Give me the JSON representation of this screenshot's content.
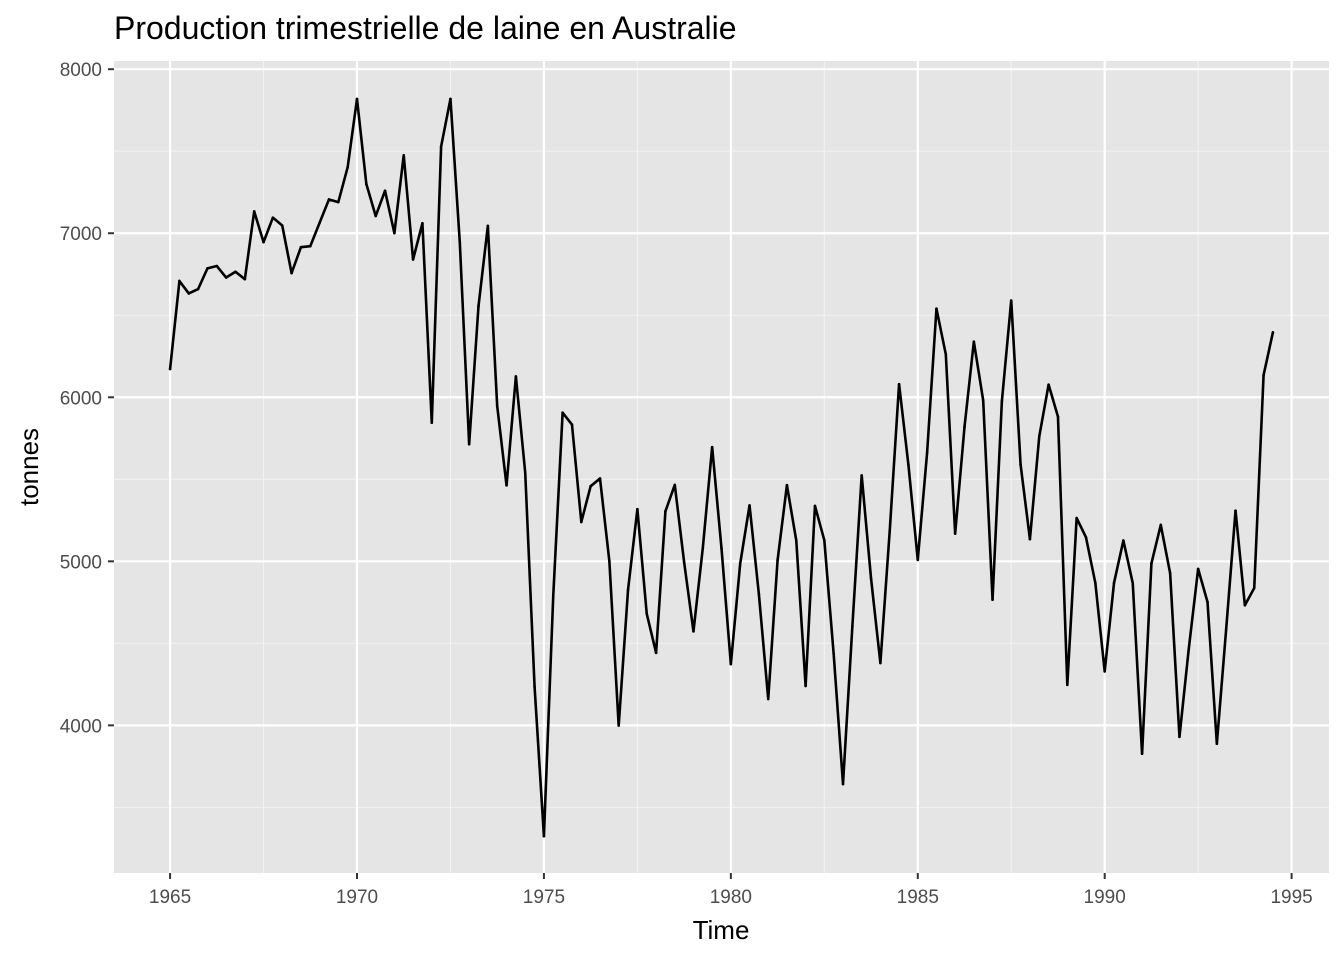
{
  "chart_data": {
    "type": "line",
    "title": "Production trimestrielle de laine en Australie",
    "xlabel": "Time",
    "ylabel": "tonnes",
    "xlim": [
      1963.5,
      1996.0
    ],
    "ylim": [
      3100,
      8050
    ],
    "x_ticks": [
      1965,
      1970,
      1975,
      1980,
      1985,
      1990,
      1995
    ],
    "y_ticks": [
      4000,
      5000,
      6000,
      7000,
      8000
    ],
    "grid": true,
    "legend": "none",
    "colors": {
      "panel_background": "#e5e5e5",
      "grid_major": "#ffffff",
      "grid_minor": "#f2f2f2",
      "line": "#000000",
      "tick_text": "#4d4d4d"
    },
    "series": [
      {
        "x_start": 1965.0,
        "frequency": 4,
        "values": [
          6172,
          6709,
          6633,
          6660,
          6786,
          6800,
          6730,
          6765,
          6720,
          7133,
          6946,
          7095,
          7047,
          6757,
          6915,
          6921,
          7064,
          7206,
          7190,
          7402,
          7819,
          7300,
          7105,
          7259,
          7001,
          7475,
          6840,
          7061,
          5845,
          7529,
          7819,
          6943,
          5714,
          6556,
          7045,
          5947,
          5463,
          6127,
          5540,
          4235,
          3324,
          4793,
          5906,
          5834,
          5240,
          5458,
          5505,
          5002,
          3999,
          4826,
          5318,
          4681,
          4442,
          5305,
          5466,
          4995,
          4573,
          5081,
          5696,
          5079,
          4373,
          4986,
          5341,
          4800,
          4161,
          5007,
          5464,
          5127,
          4240,
          5338,
          5129,
          4437,
          3642,
          4602,
          5524,
          4895,
          4380,
          5186,
          6080,
          5588,
          5009,
          5663,
          6540,
          6262,
          5169,
          5819,
          6339,
          5981,
          4766,
          5976,
          6590,
          5590,
          5135,
          5762,
          6077,
          5882,
          4247,
          5264,
          5146,
          4868,
          4329,
          4869,
          5127,
          4868,
          3827,
          4987,
          5222,
          4928,
          3930,
          4469,
          4954,
          4752,
          3888,
          4588,
          5309,
          4732,
          4837,
          6135,
          6396
        ]
      }
    ]
  }
}
